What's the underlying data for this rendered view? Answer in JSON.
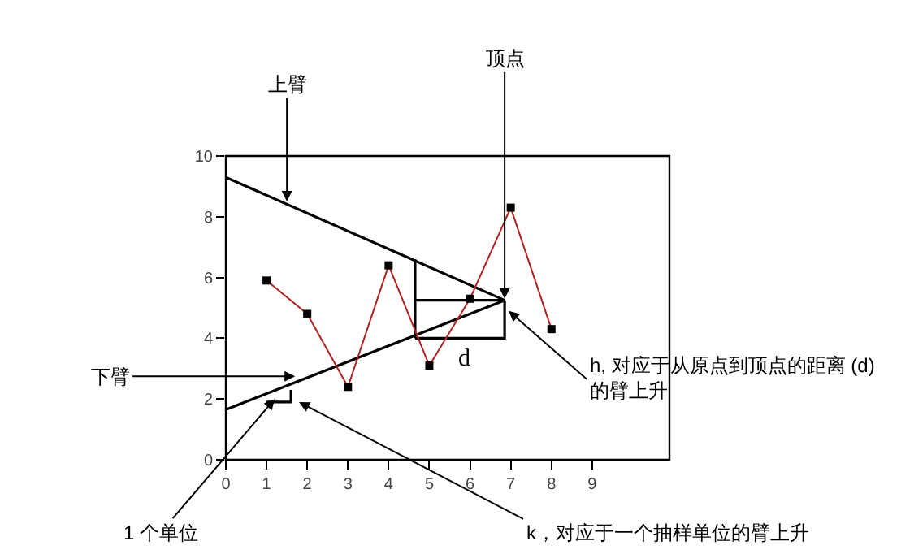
{
  "chart_data": {
    "type": "line",
    "xlim": [
      0,
      10.9
    ],
    "ylim": [
      0,
      10
    ],
    "xticks": [
      0,
      1,
      2,
      3,
      4,
      5,
      6,
      7,
      8,
      9
    ],
    "yticks": [
      0,
      2,
      4,
      6,
      8,
      10
    ],
    "series": [
      {
        "color": "#000000",
        "x": [
          0,
          6.85
        ],
        "values": [
          9.3,
          5.25
        ],
        "marker": "none"
      },
      {
        "color": "#000000",
        "x": [
          0,
          6.85
        ],
        "values": [
          1.65,
          5.25
        ],
        "marker": "none"
      },
      {
        "color": "#000000",
        "x": [
          4.65,
          6.85
        ],
        "values": [
          5.25,
          5.25
        ],
        "marker": "none"
      },
      {
        "color": "#000000",
        "x": [
          4.65,
          6.85,
          6.85
        ],
        "values": [
          4.0,
          4.0,
          5.25
        ],
        "marker": "none"
      },
      {
        "color": "#000000",
        "x": [
          4.65,
          4.65
        ],
        "values": [
          4.0,
          6.6
        ],
        "marker": "none"
      },
      {
        "color": "#000000",
        "x": [
          1.0,
          1.6,
          1.6
        ],
        "values": [
          1.9,
          1.9,
          2.3
        ],
        "marker": "none"
      },
      {
        "color": "#b22222",
        "x": [
          1,
          2,
          3,
          4,
          5,
          6,
          7,
          8
        ],
        "values": [
          5.9,
          4.8,
          2.4,
          6.4,
          3.1,
          5.3,
          8.3,
          4.3
        ],
        "marker": "none"
      },
      {
        "type": "scatter",
        "color": "#000000",
        "x": [
          1,
          2,
          3,
          4,
          5,
          6,
          7,
          8
        ],
        "values": [
          5.9,
          4.8,
          2.4,
          6.4,
          3.1,
          5.3,
          8.3,
          4.3
        ],
        "marker": "square"
      }
    ],
    "annotations": [
      {
        "text": "上臂",
        "x": 1.5,
        "y": 8.5
      },
      {
        "text": "顶点",
        "x": 6.85,
        "y": 5.3
      },
      {
        "text": "下臂",
        "x": 1.7,
        "y": 2.75
      },
      {
        "text": "1 个单位",
        "x": 1.2,
        "y": 2.0
      },
      "k，对应于一个抽样单位的臂上升",
      {
        "text": "h, 对应于从原点到顶点的距离 (d)\n的臂上升",
        "x": 6.95,
        "y": 4.9
      },
      "d"
    ]
  }
}
